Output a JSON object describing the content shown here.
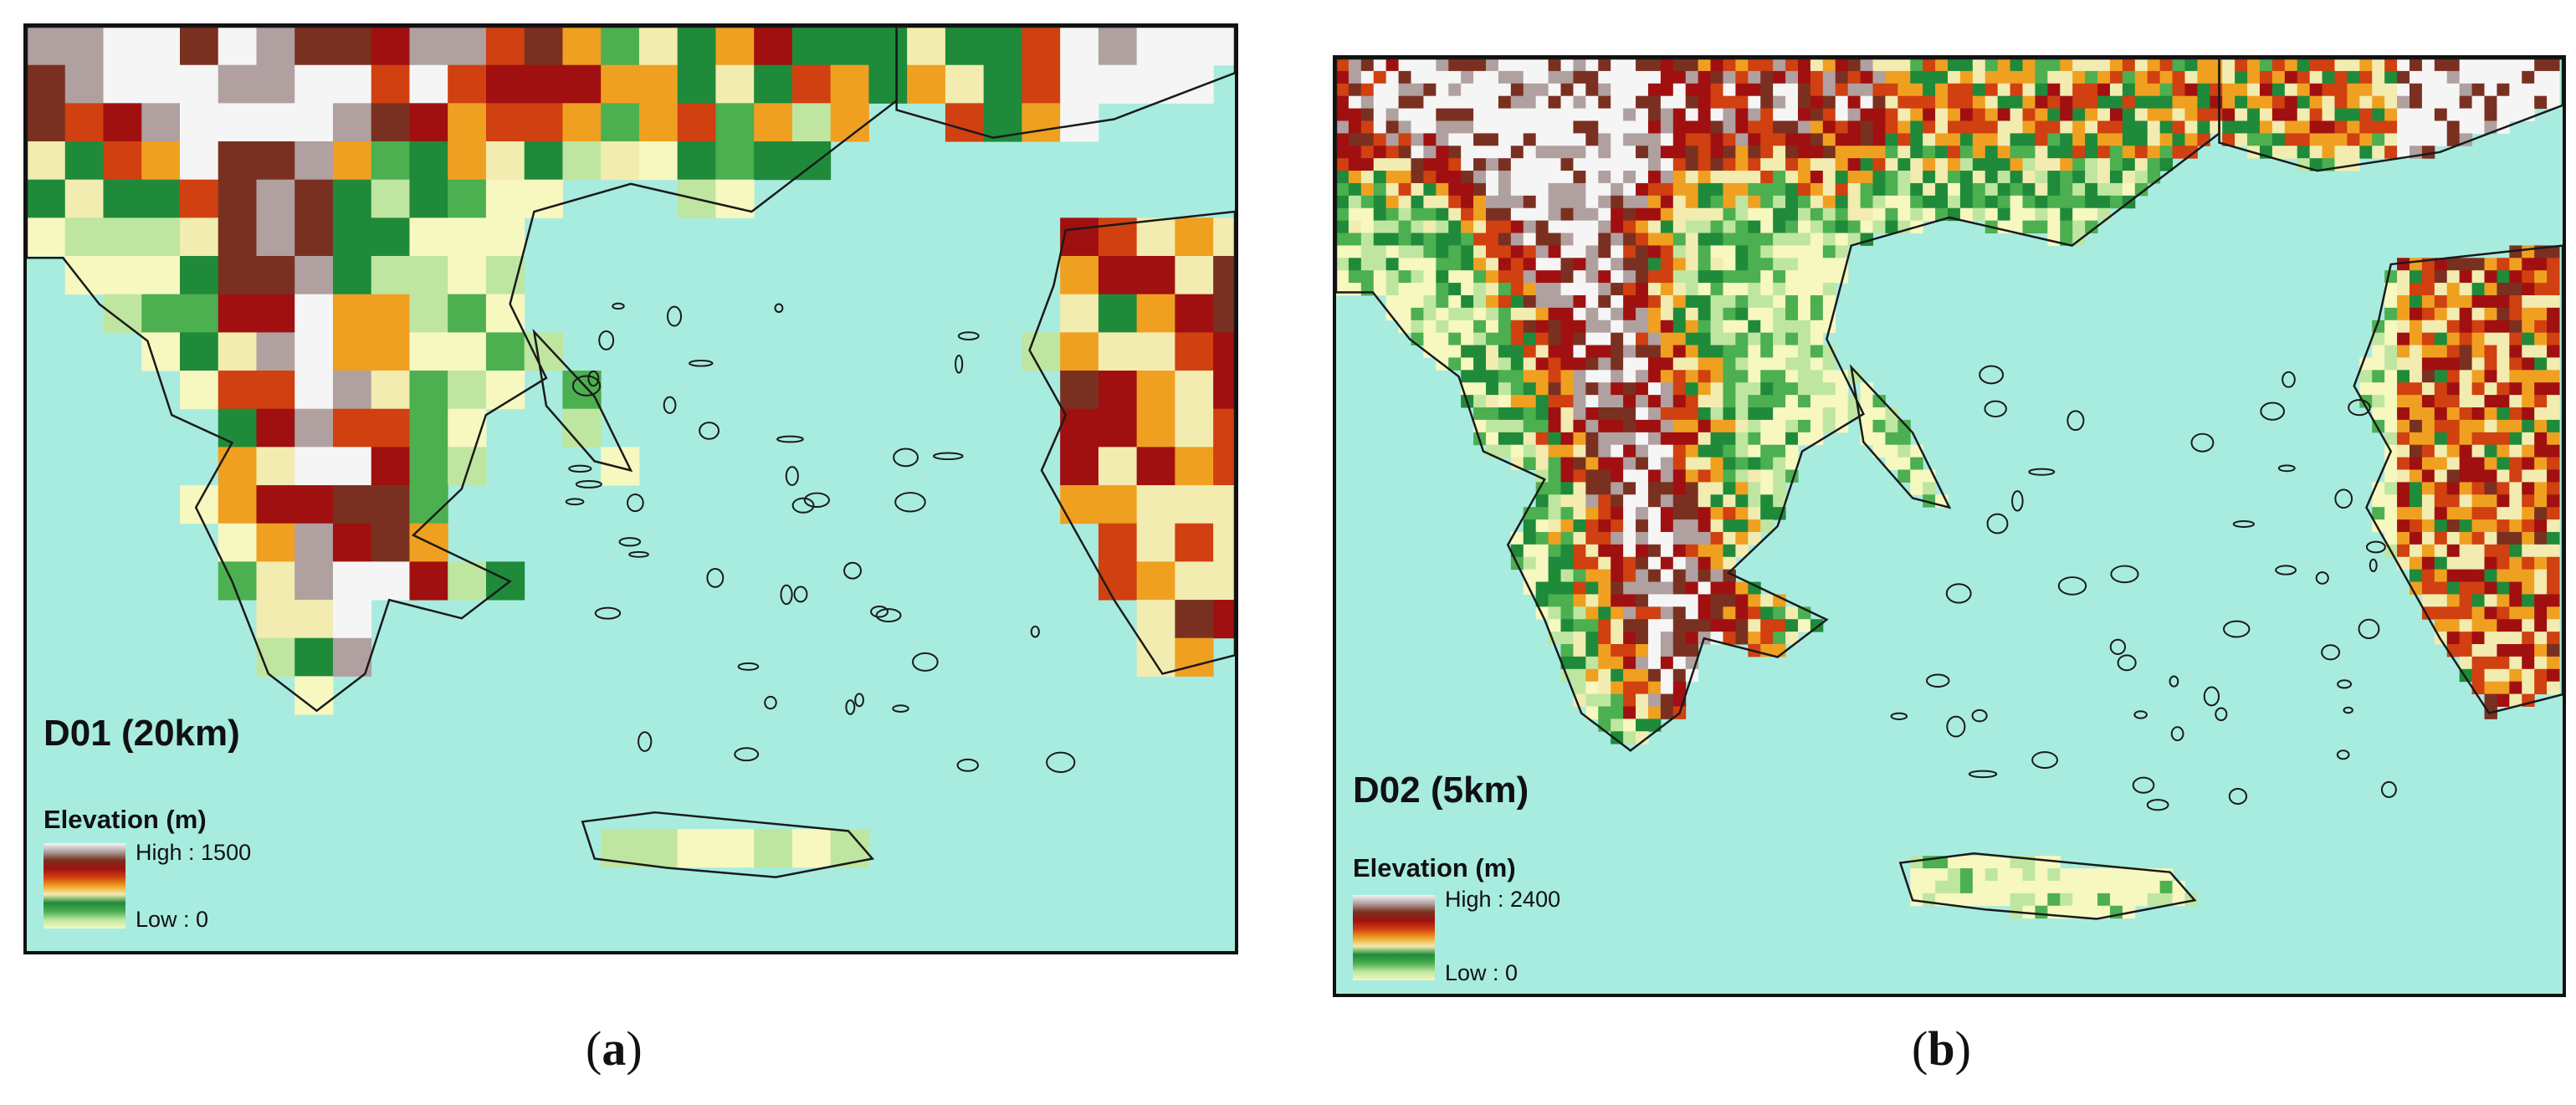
{
  "colors": {
    "sea": "#a8ece0",
    "coast_line": "#1a1a1a",
    "frame": "#111111",
    "elevation_ramp": [
      "#f5f5f5",
      "#b0a0a0",
      "#7a3020",
      "#a01010",
      "#d04010",
      "#f0a020",
      "#f2ecb0",
      "#1f8a3a",
      "#4caf50",
      "#bfe6a0",
      "#f7f7c0"
    ]
  },
  "maps": [
    {
      "id": "a",
      "title": "D01 (20km)",
      "legend": {
        "title": "Elevation (m)",
        "high": "High : 1500",
        "low": "Low : 0"
      },
      "caption_letter": "a",
      "grid_resolution_km": 20
    },
    {
      "id": "b",
      "title": "D02 (5km)",
      "legend": {
        "title": "Elevation (m)",
        "high": "High : 2400",
        "low": "Low : 0"
      },
      "caption_letter": "b",
      "grid_resolution_km": 5
    }
  ]
}
